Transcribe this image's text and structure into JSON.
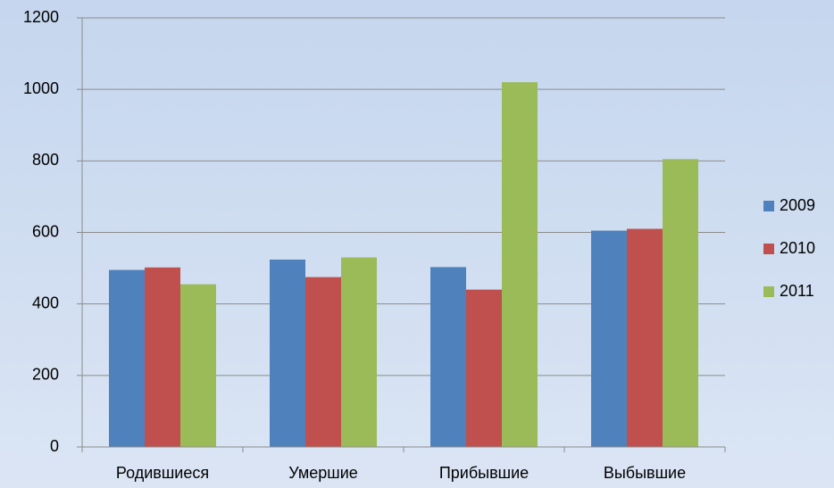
{
  "chart_data": {
    "type": "bar",
    "categories": [
      "Родившиеся",
      "Умершие",
      "Прибывшие",
      "Выбывшие"
    ],
    "series": [
      {
        "name": "2009",
        "color": "#4f81bd",
        "values": [
          495,
          524,
          503,
          605
        ]
      },
      {
        "name": "2010",
        "color": "#c0504d",
        "values": [
          502,
          475,
          440,
          610
        ]
      },
      {
        "name": "2011",
        "color": "#9bbb59",
        "values": [
          455,
          530,
          1020,
          805
        ]
      }
    ],
    "ylim": [
      0,
      1200
    ],
    "yticks": [
      0,
      200,
      400,
      600,
      800,
      1000,
      1200
    ],
    "grid": true,
    "legend": "right"
  }
}
